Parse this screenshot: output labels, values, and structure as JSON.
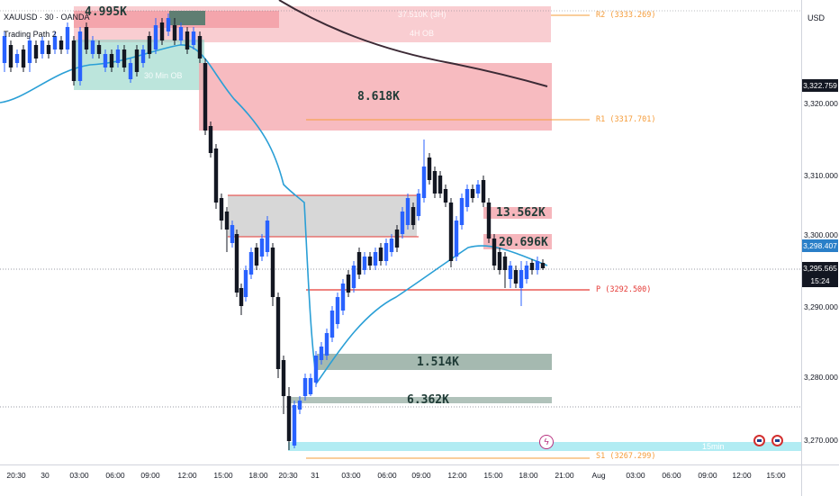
{
  "header": {
    "ticker": "XAUUSD · 30 · OANDA",
    "indicator": "Trading Path 2"
  },
  "price_axis": {
    "currency": "USD",
    "ticks": [
      "3,320.000",
      "3,310.000",
      "3,300.000",
      "3,290.000",
      "3,280.000",
      "3,270.000"
    ],
    "badges": {
      "sma": "3,322.759",
      "ema": "3,298.407",
      "last": "3,295.565",
      "countdown": "15:24"
    }
  },
  "time_axis": {
    "ticks": [
      "20:30",
      "30",
      "03:00",
      "06:00",
      "09:00",
      "12:00",
      "15:00",
      "18:00",
      "20:30",
      "31",
      "03:00",
      "06:00",
      "09:00",
      "12:00",
      "15:00",
      "18:00",
      "21:00",
      "Aug",
      "03:00",
      "06:00",
      "09:00",
      "12:00",
      "15:00"
    ]
  },
  "zones": {
    "z1": "4.995K",
    "z2": "8.618K",
    "z3": "13.562K",
    "z4": "20.696K",
    "z5": "1.514K",
    "z6": "6.362K",
    "ghost_top": "37.510K (3H)",
    "ghost_top2": "4H OB",
    "ghost_left": "30 Min OB",
    "ghost_bottom": "15min"
  },
  "pivots": {
    "r2": "R2 (3333.269)",
    "r1": "R1 (3317.701)",
    "p": "P (3292.500)",
    "s1": "S1 (3267.299)"
  },
  "colors": {
    "bull": "#2962ff",
    "bear": "#131722",
    "ema": "#2a9fd6",
    "sma": "#3c2a35",
    "supply": "#f4a4ab",
    "pivot_orange": "#f59c3a",
    "pivot_red": "#e53935"
  }
}
